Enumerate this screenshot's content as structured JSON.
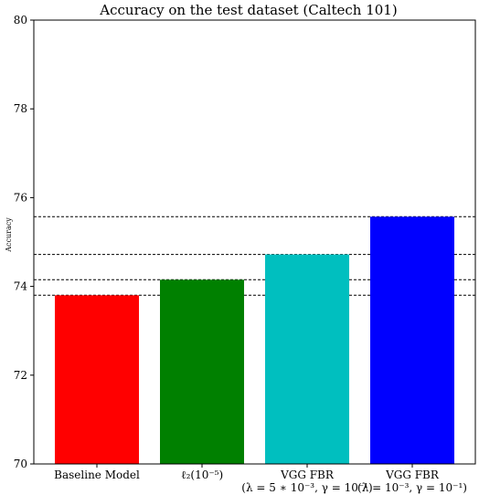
{
  "chart_data": {
    "type": "bar",
    "title": "Accuracy on the test dataset (Caltech 101)",
    "xlabel": "",
    "ylabel": "Accuracy",
    "ylim": [
      70,
      80
    ],
    "yticks": [
      70,
      72,
      74,
      76,
      78,
      80
    ],
    "grid": false,
    "categories": [
      {
        "line1": "Baseline Model",
        "line2": ""
      },
      {
        "line1": "ℓ₂(10⁻⁵)",
        "line2": ""
      },
      {
        "line1": "VGG FBR",
        "line2": "(λ = 5 ∗ 10⁻³, γ = 10⁻¹)"
      },
      {
        "line1": "VGG FBR",
        "line2": "(λ = 10⁻³, γ = 10⁻¹)"
      }
    ],
    "values": [
      73.8,
      74.15,
      74.72,
      75.57
    ],
    "colors": [
      "#ff0000",
      "#008000",
      "#00bfbf",
      "#0000ff"
    ],
    "reference_lines": [
      73.8,
      74.15,
      74.72,
      75.57
    ],
    "reference_line_style": "dashed"
  }
}
